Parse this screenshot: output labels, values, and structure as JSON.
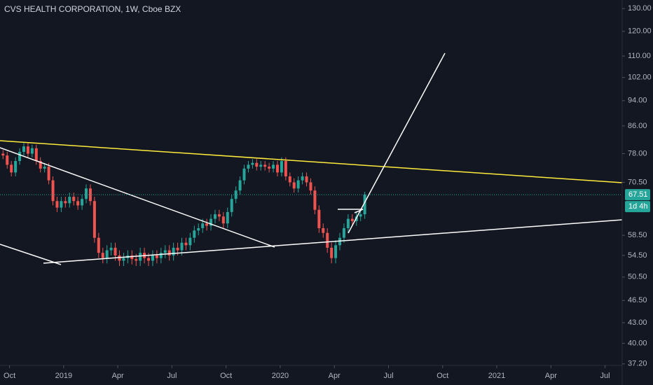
{
  "chart_data": {
    "type": "candlestick",
    "title": "CVS HEALTH CORPORATION, 1W, Cboe BZX",
    "up_color": "#26a69a",
    "down_color": "#ef5350",
    "log_scale": true,
    "grid": false,
    "countdown": "1d 4h",
    "xlim": [
      2018.706,
      2021.579
    ],
    "xticks": [
      {
        "value": 2018.75,
        "label": "Oct"
      },
      2019,
      {
        "value": 2019.25,
        "label": "Apr"
      },
      {
        "value": 2019.5,
        "label": "Jul"
      },
      {
        "value": 2019.75,
        "label": "Oct"
      },
      2020,
      {
        "value": 2020.25,
        "label": "Apr"
      },
      {
        "value": 2020.5,
        "label": "Jul"
      },
      {
        "value": 2020.75,
        "label": "Oct"
      },
      2021,
      {
        "value": 2021.25,
        "label": "Apr"
      },
      {
        "value": 2021.5,
        "label": "Jul"
      }
    ],
    "ylim": [
      37.0,
      134
    ],
    "yticks": [
      {
        "value": 37.2,
        "label": "37.20"
      },
      {
        "value": 40,
        "label": "40.00"
      },
      {
        "value": 43,
        "label": "43.00"
      },
      {
        "value": 46.5,
        "label": "46.50"
      },
      {
        "value": 50.5,
        "label": "50.50"
      },
      {
        "value": 54.5,
        "label": "54.50"
      },
      {
        "value": 58.5,
        "label": "58.50"
      },
      {
        "value": 70.5,
        "label": "70.50"
      },
      {
        "value": 78,
        "label": "78.00"
      },
      {
        "value": 86,
        "label": "86.00"
      },
      {
        "value": 94,
        "label": "94.00"
      },
      {
        "value": 102,
        "label": "102.00"
      },
      {
        "value": 110,
        "label": "110.00"
      },
      {
        "value": 120,
        "label": "120.00"
      },
      {
        "value": 130,
        "label": "130.00"
      }
    ],
    "x": [
      2018.72,
      2018.7392,
      2018.7584,
      2018.7776,
      2018.7968,
      2018.816,
      2018.8352,
      2018.8544,
      2018.8736,
      2018.8928,
      2018.912,
      2018.9312,
      2018.9504,
      2018.9696,
      2018.9888,
      2019.008,
      2019.0272,
      2019.0464,
      2019.0656,
      2019.0848,
      2019.104,
      2019.1232,
      2019.1424,
      2019.1616,
      2019.1808,
      2019.2,
      2019.2192,
      2019.2384,
      2019.2576,
      2019.2768,
      2019.296,
      2019.3152,
      2019.3344,
      2019.3536,
      2019.3728,
      2019.392,
      2019.4112,
      2019.4304,
      2019.4496,
      2019.4688,
      2019.488,
      2019.5072,
      2019.5264,
      2019.5456,
      2019.5648,
      2019.584,
      2019.6032,
      2019.6224,
      2019.6416,
      2019.6608,
      2019.68,
      2019.6992,
      2019.7184,
      2019.7376,
      2019.7568,
      2019.776,
      2019.7952,
      2019.8144,
      2019.8336,
      2019.8528,
      2019.872,
      2019.8912,
      2019.9104,
      2019.9296,
      2019.9488,
      2019.968,
      2019.9872,
      2020.0064,
      2020.0256,
      2020.0448,
      2020.064,
      2020.0832,
      2020.1024,
      2020.1216,
      2020.1408,
      2020.16,
      2020.1792,
      2020.1984,
      2020.2176,
      2020.2368,
      2020.256,
      2020.2752,
      2020.2944,
      2020.3136,
      2020.3328,
      2020.352,
      2020.3712,
      2020.3904
    ],
    "open": [
      78,
      77.5,
      75,
      73,
      76,
      78.5,
      80,
      78,
      79.5,
      76,
      74,
      74.5,
      71,
      66,
      64.5,
      66,
      65.5,
      67,
      66,
      65,
      66.5,
      69,
      66,
      58,
      55,
      54,
      55.5,
      56,
      54.5,
      53.5,
      54,
      54.5,
      53.8,
      53.5,
      55,
      54,
      53.5,
      54.5,
      54,
      55,
      55.5,
      54.5,
      56,
      55.5,
      57,
      56.5,
      58,
      59.5,
      60,
      61,
      60.5,
      62,
      63,
      62.5,
      61,
      63.5,
      66.5,
      68.5,
      71,
      74,
      75,
      75.5,
      74.5,
      75,
      74.5,
      74,
      75,
      73,
      76,
      72,
      70.5,
      69,
      71,
      72,
      70.5,
      68.5,
      64,
      60,
      59,
      56,
      54,
      56.5,
      58,
      60,
      62,
      61.5,
      62.5,
      63
    ],
    "high": [
      79,
      78.5,
      76,
      77,
      79.5,
      81,
      81,
      80.5,
      80.5,
      77,
      75.5,
      75.5,
      72,
      67,
      67,
      67,
      68,
      68,
      67,
      67.5,
      70,
      70,
      67,
      59,
      56,
      56.5,
      57,
      57,
      55.5,
      55,
      55.5,
      55.5,
      54.8,
      56,
      56,
      55,
      55.5,
      55.5,
      56,
      56.5,
      56.5,
      57,
      57,
      58,
      58,
      59,
      60.5,
      61,
      62,
      62,
      63,
      64,
      64,
      63.5,
      64.5,
      67.5,
      69.5,
      72,
      75,
      76,
      76.5,
      76.5,
      76,
      76,
      75.5,
      76,
      76,
      77,
      77,
      73,
      71.5,
      72,
      73,
      73,
      71.5,
      69.5,
      65,
      61,
      60,
      57,
      57.5,
      59,
      61,
      63,
      63,
      63.5,
      64,
      68.2
    ],
    "low": [
      76.5,
      74,
      72,
      72,
      75,
      77.5,
      77,
      77,
      75,
      73,
      73,
      70,
      65,
      63.5,
      63.5,
      64.5,
      64.5,
      65,
      64,
      64,
      65.5,
      65,
      57,
      54,
      53,
      53,
      54.5,
      53.5,
      52.5,
      52.5,
      53,
      52.8,
      52.5,
      52.5,
      53,
      52.5,
      52.5,
      53,
      53,
      54,
      53.5,
      53.5,
      54.5,
      54.5,
      55.5,
      55.5,
      57,
      58.5,
      59,
      59.5,
      59.5,
      61,
      61.5,
      60,
      60,
      62.5,
      65.5,
      67.5,
      70,
      73,
      74,
      73.5,
      73.5,
      73.5,
      73,
      73,
      72,
      72,
      71,
      69.5,
      68,
      68,
      70,
      69.5,
      67.5,
      63,
      59,
      58,
      55,
      53,
      53,
      55.5,
      57,
      59,
      60.5,
      60.5,
      61.5,
      62
    ],
    "close": [
      77.5,
      75,
      73,
      76,
      78.5,
      80,
      78,
      79.5,
      76,
      74,
      74.5,
      71,
      66,
      64.5,
      66,
      65.5,
      67,
      66,
      65,
      66.5,
      69,
      66,
      58,
      55,
      54,
      55.5,
      56,
      54.5,
      53.5,
      54,
      54.5,
      53.8,
      53.5,
      55,
      54,
      53.5,
      54.5,
      54,
      55,
      55.5,
      54.5,
      56,
      55.5,
      57,
      56.5,
      58,
      59.5,
      60,
      61,
      60.5,
      62,
      63,
      62.5,
      61,
      63.5,
      66.5,
      68.5,
      71,
      74,
      75,
      75.5,
      74.5,
      75,
      74.5,
      74,
      75,
      73,
      76,
      72,
      70.5,
      69,
      71,
      72,
      70.5,
      68.5,
      64,
      60,
      59,
      56,
      54,
      56.5,
      58,
      60,
      62,
      61.5,
      62.5,
      63,
      67.51
    ]
  }
}
